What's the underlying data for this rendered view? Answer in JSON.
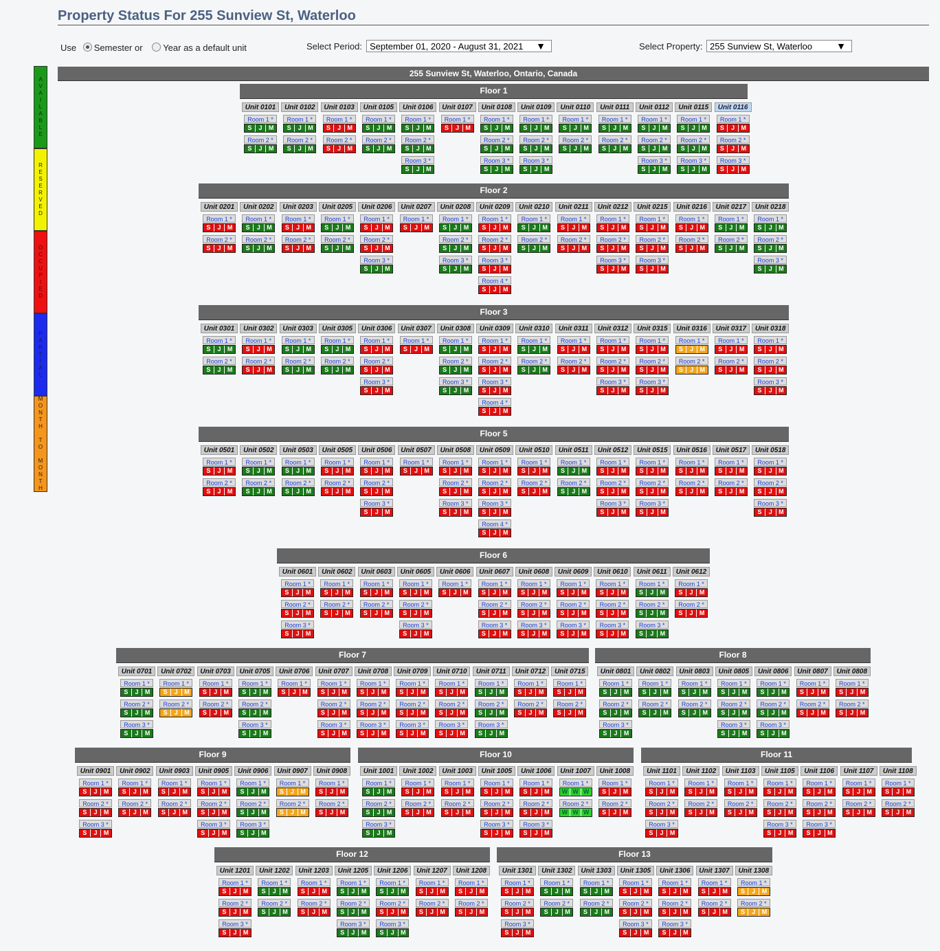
{
  "title": "Property Status For 255 Sunview St, Waterloo",
  "controls": {
    "use_label": "Use",
    "semester_label": "Semester or",
    "year_label": "Year as a default unit",
    "period_label": "Select Period:",
    "period_value": "September 01, 2020 - August 31, 2021",
    "property_label": "Select Property:",
    "property_value": "255 Sunview St, Waterloo"
  },
  "legend": [
    {
      "label": "AVAILABLE",
      "color": "#1a9a1a"
    },
    {
      "label": "RESERVED",
      "color": "#f2f200"
    },
    {
      "label": "OCCUPIED",
      "color": "#ee1111"
    },
    {
      "label": "PARTIAL",
      "color": "#1c2bee"
    },
    {
      "label": "MONTH TO MONTH",
      "color": "#f5951b"
    }
  ],
  "status_colors": {
    "G": "#1b7a1b",
    "R": "#e01010",
    "O": "#f3a51b",
    "L": "#2cd12c"
  },
  "property_header": "255 Sunview St, Waterloo, Ontario, Canada",
  "floors": [
    {
      "name": "Floor 1",
      "units": [
        {
          "name": "Unit 0101",
          "rooms": [
            "G",
            "G"
          ]
        },
        {
          "name": "Unit 0102",
          "rooms": [
            "G",
            "G"
          ]
        },
        {
          "name": "Unit 0103",
          "rooms": [
            "R",
            "R"
          ]
        },
        {
          "name": "Unit 0105",
          "rooms": [
            "G",
            "G"
          ]
        },
        {
          "name": "Unit 0106",
          "rooms": [
            "G",
            "G",
            "G"
          ]
        },
        {
          "name": "Unit 0107",
          "rooms": [
            "R"
          ]
        },
        {
          "name": "Unit 0108",
          "rooms": [
            "G",
            "G",
            "G"
          ]
        },
        {
          "name": "Unit 0109",
          "rooms": [
            "G",
            "G",
            "G"
          ]
        },
        {
          "name": "Unit 0110",
          "rooms": [
            "G",
            "G"
          ]
        },
        {
          "name": "Unit 0111",
          "rooms": [
            "G",
            "G"
          ]
        },
        {
          "name": "Unit 0112",
          "rooms": [
            "G",
            "G",
            "G"
          ]
        },
        {
          "name": "Unit 0115",
          "rooms": [
            "G",
            "G",
            "G"
          ]
        },
        {
          "name": "Unit 0116",
          "rooms": [
            "R",
            "R",
            "R"
          ],
          "highlight": true
        }
      ]
    },
    {
      "name": "Floor 2",
      "units": [
        {
          "name": "Unit 0201",
          "rooms": [
            "R",
            "R"
          ]
        },
        {
          "name": "Unit 0202",
          "rooms": [
            "G",
            "G"
          ]
        },
        {
          "name": "Unit 0203",
          "rooms": [
            "R",
            "R"
          ]
        },
        {
          "name": "Unit 0205",
          "rooms": [
            "G",
            "G"
          ]
        },
        {
          "name": "Unit 0206",
          "rooms": [
            "R",
            "R",
            "G"
          ]
        },
        {
          "name": "Unit 0207",
          "rooms": [
            "R"
          ]
        },
        {
          "name": "Unit 0208",
          "rooms": [
            "G",
            "G",
            "G"
          ]
        },
        {
          "name": "Unit 0209",
          "rooms": [
            "R",
            "R",
            "R",
            "R"
          ]
        },
        {
          "name": "Unit 0210",
          "rooms": [
            "G",
            "G"
          ]
        },
        {
          "name": "Unit 0211",
          "rooms": [
            "R",
            "R"
          ]
        },
        {
          "name": "Unit 0212",
          "rooms": [
            "R",
            "R",
            "R"
          ]
        },
        {
          "name": "Unit 0215",
          "rooms": [
            "R",
            "R",
            "R"
          ]
        },
        {
          "name": "Unit 0216",
          "rooms": [
            "R",
            "R"
          ]
        },
        {
          "name": "Unit 0217",
          "rooms": [
            "G",
            "G"
          ]
        },
        {
          "name": "Unit 0218",
          "rooms": [
            "G",
            "G",
            "G"
          ]
        }
      ]
    },
    {
      "name": "Floor 3",
      "units": [
        {
          "name": "Unit 0301",
          "rooms": [
            "G",
            "G"
          ]
        },
        {
          "name": "Unit 0302",
          "rooms": [
            "R",
            "R"
          ]
        },
        {
          "name": "Unit 0303",
          "rooms": [
            "G",
            "G"
          ]
        },
        {
          "name": "Unit 0305",
          "rooms": [
            "G",
            "G"
          ]
        },
        {
          "name": "Unit 0306",
          "rooms": [
            "R",
            "R",
            "R"
          ]
        },
        {
          "name": "Unit 0307",
          "rooms": [
            "R"
          ]
        },
        {
          "name": "Unit 0308",
          "rooms": [
            "G",
            "G",
            "G"
          ]
        },
        {
          "name": "Unit 0309",
          "rooms": [
            "R",
            "R",
            "R",
            "R"
          ]
        },
        {
          "name": "Unit 0310",
          "rooms": [
            "G",
            "G"
          ]
        },
        {
          "name": "Unit 0311",
          "rooms": [
            "R",
            "R"
          ]
        },
        {
          "name": "Unit 0312",
          "rooms": [
            "R",
            "R",
            "R"
          ]
        },
        {
          "name": "Unit 0315",
          "rooms": [
            "R",
            "R",
            "R"
          ]
        },
        {
          "name": "Unit 0316",
          "rooms": [
            "O",
            "O"
          ]
        },
        {
          "name": "Unit 0317",
          "rooms": [
            "R",
            "R"
          ]
        },
        {
          "name": "Unit 0318",
          "rooms": [
            "R",
            "R",
            "R"
          ]
        }
      ]
    },
    {
      "name": "Floor 5",
      "units": [
        {
          "name": "Unit 0501",
          "rooms": [
            "R",
            "R"
          ]
        },
        {
          "name": "Unit 0502",
          "rooms": [
            "G",
            "G"
          ]
        },
        {
          "name": "Unit 0503",
          "rooms": [
            "G",
            "G"
          ]
        },
        {
          "name": "Unit 0505",
          "rooms": [
            "R",
            "R"
          ]
        },
        {
          "name": "Unit 0506",
          "rooms": [
            "R",
            "R",
            "R"
          ]
        },
        {
          "name": "Unit 0507",
          "rooms": [
            "R"
          ]
        },
        {
          "name": "Unit 0508",
          "rooms": [
            "R",
            "R",
            "R"
          ]
        },
        {
          "name": "Unit 0509",
          "rooms": [
            "R",
            "R",
            "R",
            "R"
          ]
        },
        {
          "name": "Unit 0510",
          "rooms": [
            "R",
            "R"
          ]
        },
        {
          "name": "Unit 0511",
          "rooms": [
            "G",
            "G"
          ]
        },
        {
          "name": "Unit 0512",
          "rooms": [
            "R",
            "R",
            "R"
          ]
        },
        {
          "name": "Unit 0515",
          "rooms": [
            "R",
            "R",
            "R"
          ]
        },
        {
          "name": "Unit 0516",
          "rooms": [
            "R",
            "R"
          ]
        },
        {
          "name": "Unit 0517",
          "rooms": [
            "R",
            "R"
          ]
        },
        {
          "name": "Unit 0518",
          "rooms": [
            "R",
            "R",
            "R"
          ]
        }
      ]
    },
    {
      "name": "Floor 6",
      "units": [
        {
          "name": "Unit 0601",
          "rooms": [
            "R",
            "R",
            "R"
          ]
        },
        {
          "name": "Unit 0602",
          "rooms": [
            "R",
            "R"
          ]
        },
        {
          "name": "Unit 0603",
          "rooms": [
            "R",
            "R"
          ]
        },
        {
          "name": "Unit 0605",
          "rooms": [
            "R",
            "R",
            "R"
          ]
        },
        {
          "name": "Unit 0606",
          "rooms": [
            "R"
          ]
        },
        {
          "name": "Unit 0607",
          "rooms": [
            "R",
            "R",
            "R"
          ]
        },
        {
          "name": "Unit 0608",
          "rooms": [
            "R",
            "R",
            "R"
          ]
        },
        {
          "name": "Unit 0609",
          "rooms": [
            "R",
            "R",
            "R"
          ]
        },
        {
          "name": "Unit 0610",
          "rooms": [
            "R",
            "R",
            "R"
          ]
        },
        {
          "name": "Unit 0611",
          "rooms": [
            "G",
            "G",
            "G"
          ]
        },
        {
          "name": "Unit 0612",
          "rooms": [
            "R",
            "R"
          ]
        }
      ]
    },
    {
      "name": "Floor 7",
      "units": [
        {
          "name": "Unit 0701",
          "rooms": [
            "G",
            "G",
            "G"
          ]
        },
        {
          "name": "Unit 0702",
          "rooms": [
            "O",
            "O"
          ]
        },
        {
          "name": "Unit 0703",
          "rooms": [
            "R",
            "R"
          ]
        },
        {
          "name": "Unit 0705",
          "rooms": [
            "G",
            "G",
            "G"
          ]
        },
        {
          "name": "Unit 0706",
          "rooms": [
            "R"
          ]
        },
        {
          "name": "Unit 0707",
          "rooms": [
            "R",
            "R",
            "R"
          ]
        },
        {
          "name": "Unit 0708",
          "rooms": [
            "R",
            "R",
            "R"
          ]
        },
        {
          "name": "Unit 0709",
          "rooms": [
            "R",
            "R",
            "R"
          ]
        },
        {
          "name": "Unit 0710",
          "rooms": [
            "R",
            "R",
            "R"
          ]
        },
        {
          "name": "Unit 0711",
          "rooms": [
            "G",
            "G",
            "G"
          ]
        },
        {
          "name": "Unit 0712",
          "rooms": [
            "R",
            "R"
          ]
        },
        {
          "name": "Unit 0715",
          "rooms": [
            "R",
            "R"
          ]
        }
      ]
    },
    {
      "name": "Floor 8",
      "units": [
        {
          "name": "Unit 0801",
          "rooms": [
            "G",
            "G",
            "G"
          ]
        },
        {
          "name": "Unit 0802",
          "rooms": [
            "G",
            "G"
          ]
        },
        {
          "name": "Unit 0803",
          "rooms": [
            "G",
            "G"
          ]
        },
        {
          "name": "Unit 0805",
          "rooms": [
            "G",
            "G",
            "G"
          ]
        },
        {
          "name": "Unit 0806",
          "rooms": [
            "G",
            "G",
            "G"
          ]
        },
        {
          "name": "Unit 0807",
          "rooms": [
            "R",
            "R"
          ]
        },
        {
          "name": "Unit 0808",
          "rooms": [
            "R",
            "R"
          ]
        }
      ]
    },
    {
      "name": "Floor 9",
      "units": [
        {
          "name": "Unit 0901",
          "rooms": [
            "R",
            "R",
            "R"
          ]
        },
        {
          "name": "Unit 0902",
          "rooms": [
            "R",
            "R"
          ]
        },
        {
          "name": "Unit 0903",
          "rooms": [
            "R",
            "R"
          ]
        },
        {
          "name": "Unit 0905",
          "rooms": [
            "R",
            "R",
            "R"
          ]
        },
        {
          "name": "Unit 0906",
          "rooms": [
            "G",
            "G",
            "G"
          ]
        },
        {
          "name": "Unit 0907",
          "rooms": [
            "O",
            "O"
          ]
        },
        {
          "name": "Unit 0908",
          "rooms": [
            "R",
            "R"
          ]
        }
      ]
    },
    {
      "name": "Floor 10",
      "units": [
        {
          "name": "Unit 1001",
          "rooms": [
            "G",
            "G",
            "G"
          ]
        },
        {
          "name": "Unit 1002",
          "rooms": [
            "R",
            "R"
          ]
        },
        {
          "name": "Unit 1003",
          "rooms": [
            "R",
            "R"
          ]
        },
        {
          "name": "Unit 1005",
          "rooms": [
            "R",
            "R",
            "R"
          ]
        },
        {
          "name": "Unit 1006",
          "rooms": [
            "R",
            "R",
            "R"
          ]
        },
        {
          "name": "Unit 1007",
          "rooms": [
            "LW",
            "LW"
          ]
        },
        {
          "name": "Unit 1008",
          "rooms": [
            "R",
            "R"
          ]
        }
      ]
    },
    {
      "name": "Floor 11",
      "units": [
        {
          "name": "Unit 1101",
          "rooms": [
            "R",
            "R",
            "R"
          ]
        },
        {
          "name": "Unit 1102",
          "rooms": [
            "R",
            "R"
          ]
        },
        {
          "name": "Unit 1103",
          "rooms": [
            "R",
            "R"
          ]
        },
        {
          "name": "Unit 1105",
          "rooms": [
            "R",
            "R",
            "R"
          ]
        },
        {
          "name": "Unit 1106",
          "rooms": [
            "R",
            "R",
            "R"
          ]
        },
        {
          "name": "Unit 1107",
          "rooms": [
            "R",
            "R"
          ]
        },
        {
          "name": "Unit 1108",
          "rooms": [
            "R",
            "R"
          ]
        }
      ]
    },
    {
      "name": "Floor 12",
      "units": [
        {
          "name": "Unit 1201",
          "rooms": [
            "R",
            "R",
            "R"
          ]
        },
        {
          "name": "Unit 1202",
          "rooms": [
            "G",
            "G"
          ]
        },
        {
          "name": "Unit 1203",
          "rooms": [
            "R",
            "R"
          ]
        },
        {
          "name": "Unit 1205",
          "rooms": [
            "G",
            "G",
            "G"
          ]
        },
        {
          "name": "Unit 1206",
          "rooms": [
            "G",
            "R",
            "G"
          ]
        },
        {
          "name": "Unit 1207",
          "rooms": [
            "R",
            "R"
          ]
        },
        {
          "name": "Unit 1208",
          "rooms": [
            "R",
            "R"
          ]
        }
      ]
    },
    {
      "name": "Floor 13",
      "units": [
        {
          "name": "Unit 1301",
          "rooms": [
            "R",
            "R",
            "R"
          ]
        },
        {
          "name": "Unit 1302",
          "rooms": [
            "G",
            "G"
          ]
        },
        {
          "name": "Unit 1303",
          "rooms": [
            "G",
            "G"
          ]
        },
        {
          "name": "Unit 1305",
          "rooms": [
            "R",
            "R",
            "R"
          ]
        },
        {
          "name": "Unit 1306",
          "rooms": [
            "R",
            "R",
            "R"
          ]
        },
        {
          "name": "Unit 1307",
          "rooms": [
            "R",
            "R"
          ]
        },
        {
          "name": "Unit 1308",
          "rooms": [
            "O",
            "O"
          ]
        }
      ]
    }
  ]
}
